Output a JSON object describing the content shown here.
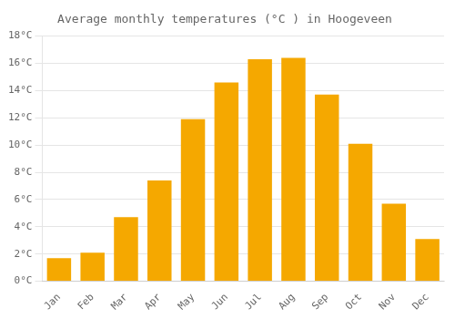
{
  "chart_data": {
    "type": "bar",
    "title": "Average monthly temperatures (°C ) in Hoogeveen",
    "categories": [
      "Jan",
      "Feb",
      "Mar",
      "Apr",
      "May",
      "Jun",
      "Jul",
      "Aug",
      "Sep",
      "Oct",
      "Nov",
      "Dec"
    ],
    "values": [
      1.7,
      2.1,
      4.7,
      7.4,
      11.9,
      14.6,
      16.3,
      16.4,
      13.7,
      10.1,
      5.7,
      3.1
    ],
    "color": "#F5A800",
    "ylim": [
      0,
      18
    ],
    "yticks": [
      {
        "value": 0,
        "label": "0°C"
      },
      {
        "value": 2,
        "label": "2°C"
      },
      {
        "value": 4,
        "label": "4°C"
      },
      {
        "value": 6,
        "label": "6°C"
      },
      {
        "value": 8,
        "label": "8°C"
      },
      {
        "value": 10,
        "label": "10°C"
      },
      {
        "value": 12,
        "label": "12°C"
      },
      {
        "value": 14,
        "label": "14°C"
      },
      {
        "value": 16,
        "label": "16°C"
      },
      {
        "value": 18,
        "label": "18°C"
      }
    ],
    "grid": true
  }
}
